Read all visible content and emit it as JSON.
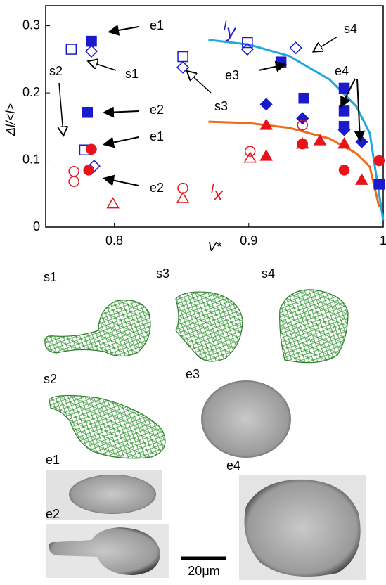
{
  "chart_data": {
    "type": "scatter",
    "x_label": "V*",
    "y_label": "Δl/<l>",
    "xlim": [
      0.749,
      1.0
    ],
    "ylim": [
      0,
      0.33
    ],
    "xticks": [
      0.8,
      0.9,
      1
    ],
    "yticks": [
      0,
      0.1,
      0.2,
      0.3
    ],
    "series": [
      {
        "marker": "square",
        "filled": true,
        "color": "#1a1acc",
        "x": [
          0.783,
          0.78,
          0.924,
          0.941,
          0.971,
          0.971,
          0.971,
          0.997
        ],
        "values": [
          0.277,
          0.171,
          0.246,
          0.192,
          0.207,
          0.173,
          0.15,
          0.064
        ]
      },
      {
        "marker": "square",
        "filled": false,
        "color": "#1a1acc",
        "x": [
          0.768,
          0.778,
          0.851,
          0.899
        ],
        "values": [
          0.265,
          0.115,
          0.254,
          0.275
        ]
      },
      {
        "marker": "diamond",
        "filled": true,
        "color": "#1a1acc",
        "x": [
          0.913,
          0.94,
          0.971,
          0.984
        ],
        "values": [
          0.183,
          0.162,
          0.145,
          0.127
        ]
      },
      {
        "marker": "diamond",
        "filled": false,
        "color": "#1a1acc",
        "x": [
          0.783,
          0.785,
          0.851,
          0.899,
          0.935
        ],
        "values": [
          0.262,
          0.091,
          0.238,
          0.265,
          0.267
        ]
      },
      {
        "marker": "circle",
        "filled": true,
        "color": "#e8141a",
        "x": [
          0.783,
          0.781,
          0.94,
          0.971,
          0.997
        ],
        "values": [
          0.116,
          0.085,
          0.124,
          0.085,
          0.099
        ]
      },
      {
        "marker": "circle",
        "filled": false,
        "color": "#e8141a",
        "x": [
          0.77,
          0.77,
          0.851,
          0.901,
          0.94
        ],
        "values": [
          0.068,
          0.083,
          0.058,
          0.113,
          0.152
        ]
      },
      {
        "marker": "triangle",
        "filled": true,
        "color": "#e8141a",
        "x": [
          0.913,
          0.913,
          0.953,
          0.971,
          0.984
        ],
        "values": [
          0.152,
          0.106,
          0.129,
          0.124,
          0.07
        ]
      },
      {
        "marker": "triangle",
        "filled": false,
        "color": "#e8141a",
        "x": [
          0.799,
          0.851,
          0.901,
          0.94
        ],
        "values": [
          0.035,
          0.043,
          0.103,
          0.124
        ]
      }
    ],
    "curves": [
      {
        "color": "#1ea7e0",
        "x": [
          0.87,
          0.9,
          0.93,
          0.96,
          0.98,
          0.99,
          1.0
        ],
        "values": [
          0.279,
          0.272,
          0.255,
          0.22,
          0.18,
          0.14,
          0.01
        ]
      },
      {
        "color": "#ef6a1a",
        "x": [
          0.87,
          0.9,
          0.93,
          0.96,
          0.98,
          0.99,
          0.997
        ],
        "values": [
          0.157,
          0.155,
          0.148,
          0.132,
          0.11,
          0.09,
          0.03
        ]
      }
    ],
    "curve_labels": [
      {
        "text": "l",
        "sub": "y",
        "color": "#1a1acc"
      },
      {
        "text": "l",
        "sub": "x",
        "color": "#e8141a"
      }
    ],
    "annotations": [
      "e1",
      "s1",
      "e2",
      "s2",
      "e1",
      "e2",
      "s3",
      "e3",
      "s4",
      "e4"
    ]
  },
  "panel_labels": [
    "s1",
    "s3",
    "s4",
    "s2",
    "e3",
    "e1",
    "e2",
    "e4"
  ],
  "scale_bar": "20μm"
}
